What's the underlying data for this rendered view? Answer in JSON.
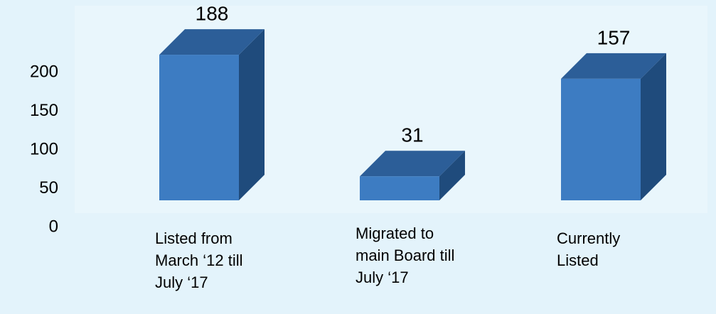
{
  "chart_data": {
    "type": "bar3d",
    "categories": [
      "Listed from March ‘12 till July ‘17",
      "Migrated to main Board till July ‘17",
      "Currently Listed"
    ],
    "values": [
      188,
      31,
      157
    ],
    "color": "#3d7cc2",
    "ylim": [
      0,
      200
    ],
    "yticks": [
      0,
      50,
      100,
      150,
      200
    ],
    "grid": false
  }
}
